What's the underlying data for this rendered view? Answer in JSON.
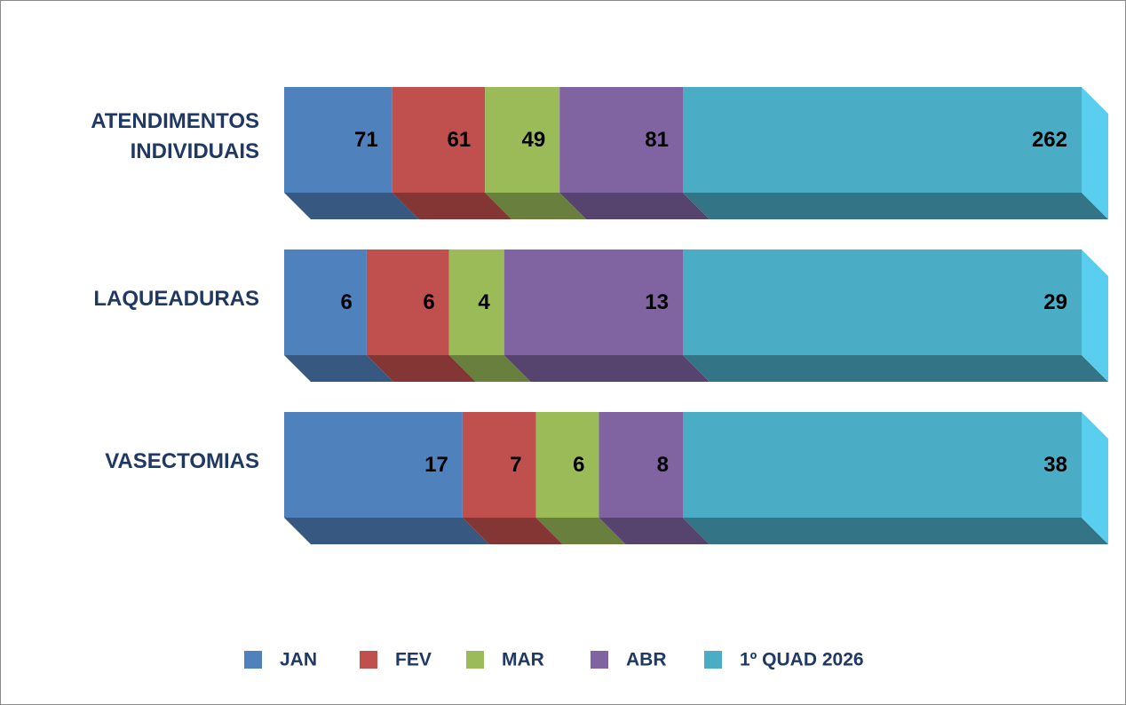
{
  "chart_data": {
    "type": "bar",
    "orientation": "horizontal",
    "stacking": "percent",
    "categories": [
      "ATENDIMENTOS INDIVIDUAIS",
      "LAQUEADURAS",
      "VASECTOMIAS"
    ],
    "series": [
      {
        "name": "JAN",
        "color": "#4f81bd",
        "values": [
          71,
          6,
          17
        ]
      },
      {
        "name": "FEV",
        "color": "#c0504d",
        "values": [
          61,
          6,
          7
        ]
      },
      {
        "name": "MAR",
        "color": "#9bbb59",
        "values": [
          49,
          4,
          6
        ]
      },
      {
        "name": "ABR",
        "color": "#8064a2",
        "values": [
          81,
          13,
          8
        ]
      },
      {
        "name": "1º QUAD 2026",
        "color": "#4bacc6",
        "values": [
          262,
          29,
          38
        ]
      }
    ],
    "legend": "bottom"
  }
}
